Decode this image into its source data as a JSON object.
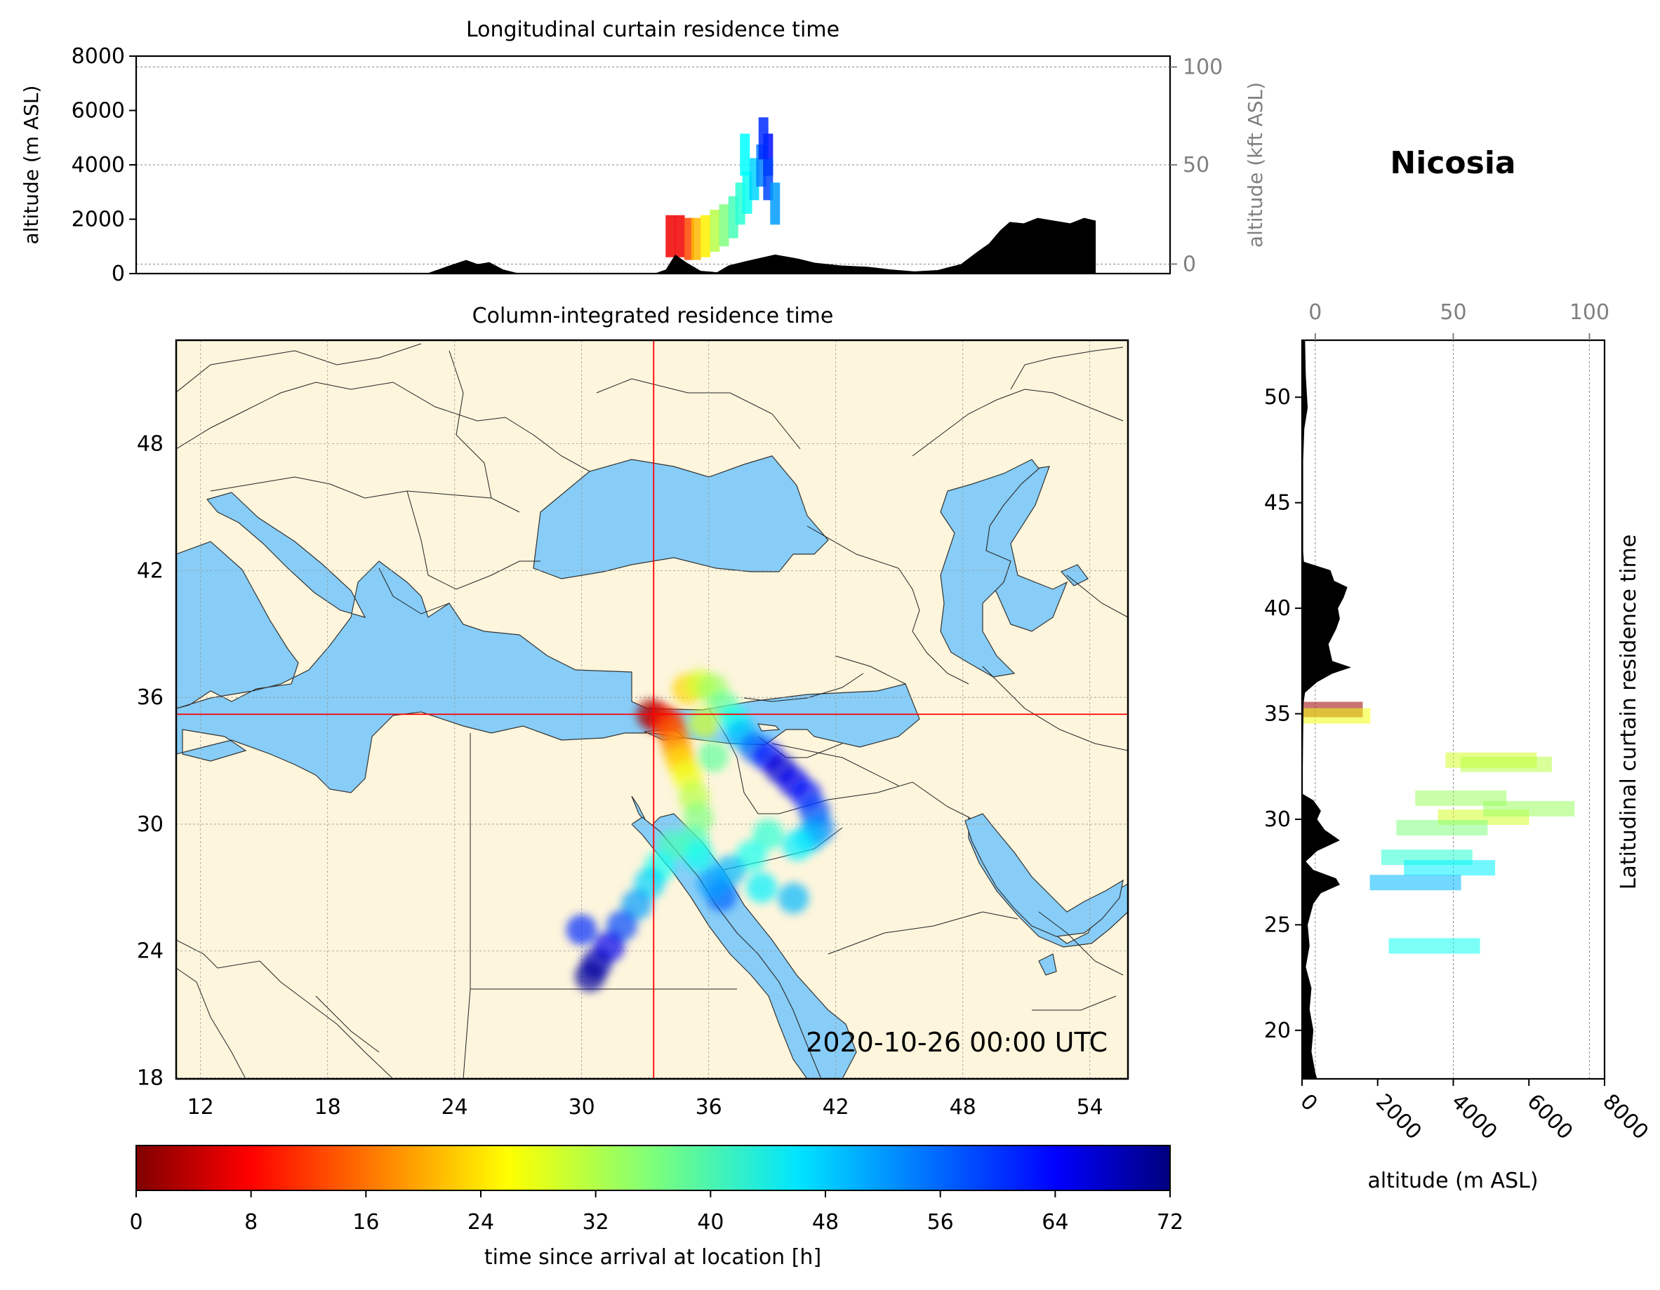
{
  "location_title": "Nicosia",
  "timestamp": "2020-10-26 00:00 UTC",
  "colors": {
    "map_land": "#fdf5dc",
    "map_sea": "#87cdf7",
    "crosshair": "#ff0000",
    "terrain": "#000000",
    "secondary_axis": "#808080"
  },
  "chart_data": [
    {
      "id": "longitudinal",
      "type": "heatmap",
      "title": "Longitudinal curtain residence time",
      "xlabel": "",
      "ylabel": "altitude (m ASL)",
      "ylabel_right": "altitude (kft ASL)",
      "ylim": [
        0,
        8000
      ],
      "yticks": [
        "0",
        "2000",
        "4000",
        "6000",
        "8000"
      ],
      "yticks_right": [
        "0",
        "50",
        "100"
      ],
      "xlim": [
        11,
        55.5
      ],
      "terrain": [
        [
          11,
          0
        ],
        [
          23.5,
          0
        ],
        [
          24.5,
          300
        ],
        [
          25.2,
          500
        ],
        [
          25.7,
          350
        ],
        [
          26.2,
          420
        ],
        [
          26.8,
          150
        ],
        [
          27.5,
          0
        ],
        [
          33.3,
          0
        ],
        [
          33.8,
          150
        ],
        [
          34.2,
          700
        ],
        [
          34.7,
          400
        ],
        [
          35.3,
          100
        ],
        [
          36,
          50
        ],
        [
          36.5,
          300
        ],
        [
          37.2,
          450
        ],
        [
          38.5,
          700
        ],
        [
          39.5,
          550
        ],
        [
          40.2,
          400
        ],
        [
          41.3,
          300
        ],
        [
          42.5,
          250
        ],
        [
          43.5,
          150
        ],
        [
          44.5,
          80
        ],
        [
          45.5,
          130
        ],
        [
          46.5,
          350
        ],
        [
          47.2,
          800
        ],
        [
          47.7,
          1100
        ],
        [
          48.2,
          1600
        ],
        [
          48.6,
          1900
        ],
        [
          49.2,
          1850
        ],
        [
          49.8,
          2050
        ],
        [
          50.5,
          1950
        ],
        [
          51.2,
          1850
        ],
        [
          51.8,
          2050
        ],
        [
          52.3,
          1950
        ],
        [
          52.3,
          0
        ]
      ],
      "plume": [
        [
          34.0,
          600,
          8
        ],
        [
          34.4,
          600,
          8
        ],
        [
          34.8,
          500,
          14
        ],
        [
          35.1,
          500,
          22
        ],
        [
          35.5,
          600,
          26
        ],
        [
          35.9,
          800,
          32
        ],
        [
          36.3,
          1000,
          36
        ],
        [
          36.7,
          1300,
          40
        ],
        [
          37.0,
          1800,
          42
        ],
        [
          37.3,
          2200,
          44
        ],
        [
          37.6,
          2700,
          48
        ],
        [
          37.9,
          3200,
          54
        ],
        [
          38.2,
          3600,
          62
        ],
        [
          38.2,
          2700,
          58
        ],
        [
          38.5,
          1800,
          52
        ],
        [
          37.2,
          3600,
          45
        ],
        [
          38.0,
          4200,
          60
        ]
      ]
    },
    {
      "id": "map",
      "type": "heatmap",
      "title": "Column-integrated residence time",
      "xticks": [
        "12",
        "18",
        "24",
        "30",
        "36",
        "42",
        "48",
        "54"
      ],
      "yticks": [
        "18",
        "24",
        "30",
        "36",
        "42",
        "48"
      ],
      "xlim": [
        10.85,
        55.8
      ],
      "ylim": [
        17.95,
        52.9
      ],
      "release_point": [
        33.4,
        35.2
      ],
      "plume": [
        [
          33.3,
          35.2,
          2
        ],
        [
          33.7,
          35.0,
          6
        ],
        [
          34.1,
          34.8,
          12
        ],
        [
          34.3,
          34.3,
          16
        ],
        [
          34.5,
          33.6,
          20
        ],
        [
          34.7,
          33.0,
          24
        ],
        [
          35.0,
          32.3,
          28
        ],
        [
          35.3,
          31.3,
          32
        ],
        [
          35.5,
          30.3,
          36
        ],
        [
          35.3,
          29.2,
          40
        ],
        [
          35.5,
          28.5,
          44
        ],
        [
          35.0,
          36.4,
          24
        ],
        [
          35.6,
          36.6,
          30
        ],
        [
          36.2,
          36.4,
          34
        ],
        [
          36.7,
          35.6,
          38
        ],
        [
          37.2,
          34.9,
          44
        ],
        [
          37.6,
          34.2,
          50
        ],
        [
          38.2,
          33.6,
          56
        ],
        [
          38.8,
          33.2,
          62
        ],
        [
          39.4,
          32.6,
          66
        ],
        [
          40.0,
          32.0,
          64
        ],
        [
          40.6,
          31.4,
          62
        ],
        [
          41.0,
          30.6,
          58
        ],
        [
          41.2,
          29.8,
          54
        ],
        [
          40.8,
          29.4,
          50
        ],
        [
          40.2,
          29.0,
          46
        ],
        [
          38.8,
          29.5,
          42
        ],
        [
          38.0,
          28.5,
          44
        ],
        [
          37.0,
          27.8,
          50
        ],
        [
          36.6,
          26.6,
          56
        ],
        [
          36.2,
          27.2,
          52
        ],
        [
          34.3,
          29.0,
          40
        ],
        [
          33.7,
          28.0,
          44
        ],
        [
          33.2,
          27.2,
          48
        ],
        [
          32.6,
          26.2,
          52
        ],
        [
          31.9,
          25.2,
          58
        ],
        [
          31.3,
          24.2,
          64
        ],
        [
          30.7,
          23.4,
          68
        ],
        [
          30.4,
          22.8,
          70
        ],
        [
          30.0,
          25.0,
          60
        ],
        [
          35.8,
          34.8,
          30
        ],
        [
          36.2,
          33.2,
          38
        ],
        [
          38.5,
          27.0,
          46
        ],
        [
          40.0,
          26.5,
          50
        ]
      ]
    },
    {
      "id": "latitudinal",
      "type": "heatmap",
      "title": "Latitudinal curtain residence time",
      "xlabel": "altitude (m ASL)",
      "xlim": [
        0,
        8000
      ],
      "xticks": [
        "0",
        "2000",
        "4000",
        "6000",
        "8000"
      ],
      "xticks_top": [
        "0",
        "50",
        "100"
      ],
      "ylim": [
        17.7,
        52.7
      ],
      "yticks": [
        "20",
        "25",
        "30",
        "35",
        "40",
        "45",
        "50"
      ],
      "terrain": [
        [
          52.7,
          80
        ],
        [
          51,
          100
        ],
        [
          49.5,
          150
        ],
        [
          48.5,
          60
        ],
        [
          47,
          30
        ],
        [
          45.5,
          30
        ],
        [
          44,
          30
        ],
        [
          42.7,
          30
        ],
        [
          42.2,
          50
        ],
        [
          41.8,
          750
        ],
        [
          41.3,
          850
        ],
        [
          41.0,
          1200
        ],
        [
          40.5,
          1100
        ],
        [
          40.0,
          950
        ],
        [
          39.5,
          1000
        ],
        [
          39.0,
          900
        ],
        [
          38.3,
          700
        ],
        [
          37.5,
          800
        ],
        [
          37.2,
          1300
        ],
        [
          36.9,
          800
        ],
        [
          36.5,
          400
        ],
        [
          36.0,
          80
        ],
        [
          35.5,
          40
        ],
        [
          34.0,
          30
        ],
        [
          32.5,
          20
        ],
        [
          31.2,
          20
        ],
        [
          30.9,
          300
        ],
        [
          30.4,
          500
        ],
        [
          30.0,
          400
        ],
        [
          29.5,
          600
        ],
        [
          29.0,
          1000
        ],
        [
          28.5,
          400
        ],
        [
          28.0,
          100
        ],
        [
          27.6,
          300
        ],
        [
          27.2,
          900
        ],
        [
          26.9,
          1000
        ],
        [
          26.5,
          500
        ],
        [
          26.0,
          300
        ],
        [
          25.0,
          150
        ],
        [
          24.0,
          200
        ],
        [
          23.0,
          100
        ],
        [
          22.0,
          250
        ],
        [
          21.0,
          200
        ],
        [
          20.0,
          300
        ],
        [
          19.0,
          250
        ],
        [
          18.0,
          350
        ],
        [
          17.7,
          400
        ]
      ],
      "plume": [
        [
          400,
          35.2,
          2
        ],
        [
          600,
          34.9,
          28
        ],
        [
          5000,
          32.8,
          30
        ],
        [
          5400,
          32.6,
          32
        ],
        [
          4200,
          31.0,
          34
        ],
        [
          4800,
          30.1,
          30
        ],
        [
          3700,
          29.6,
          36
        ],
        [
          3300,
          28.2,
          42
        ],
        [
          3900,
          27.7,
          46
        ],
        [
          3000,
          27.0,
          50
        ],
        [
          3500,
          24.0,
          44
        ],
        [
          6000,
          30.5,
          34
        ]
      ]
    },
    {
      "id": "colorbar",
      "type": "heatmap",
      "xlabel": "time since arrival at location [h]",
      "xlim": [
        0,
        72
      ],
      "ticks": [
        "0",
        "8",
        "16",
        "24",
        "32",
        "40",
        "48",
        "56",
        "64",
        "72"
      ]
    }
  ]
}
